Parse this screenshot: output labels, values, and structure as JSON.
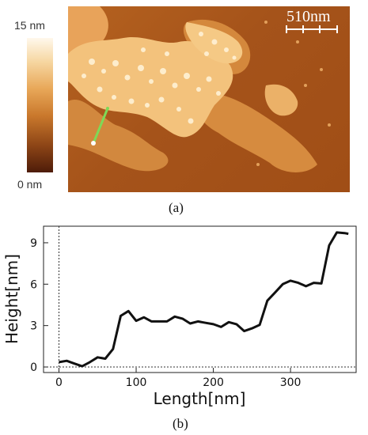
{
  "panel_a": {
    "label": "(a)",
    "colorbar": {
      "max_label": "15 nm",
      "min_label": "0 nm"
    },
    "scale_bar_label": "510nm"
  },
  "panel_b": {
    "label": "(b)"
  },
  "colors": {
    "profile_line": "#111111",
    "marker_line": "#7ed957",
    "marker_endpoint": "#ffffff"
  },
  "chart_data": {
    "type": "line",
    "title": "",
    "xlabel": "Length[nm]",
    "ylabel": "Height[nm]",
    "xlim": [
      -20,
      385
    ],
    "ylim": [
      -0.4,
      10.2
    ],
    "xticks": [
      0,
      100,
      200,
      300
    ],
    "yticks": [
      0,
      3,
      6,
      9
    ],
    "grid": false,
    "reference_lines": {
      "x_zero_dotted": true,
      "y_zero_dotted": true
    },
    "series": [
      {
        "x": [
          0,
          10,
          20,
          30,
          40,
          50,
          60,
          70,
          80,
          90,
          100,
          110,
          120,
          130,
          140,
          150,
          160,
          170,
          180,
          190,
          200,
          210,
          220,
          230,
          240,
          250,
          260,
          270,
          280,
          290,
          300,
          310,
          320,
          330,
          340,
          350,
          360,
          370,
          375
        ],
        "y": [
          0.35,
          0.45,
          0.25,
          0.05,
          0.35,
          0.7,
          0.6,
          1.3,
          3.7,
          4.05,
          3.35,
          3.6,
          3.3,
          3.3,
          3.3,
          3.65,
          3.5,
          3.15,
          3.3,
          3.2,
          3.1,
          2.9,
          3.25,
          3.1,
          2.6,
          2.8,
          3.05,
          4.8,
          5.4,
          6.0,
          6.25,
          6.1,
          5.85,
          6.1,
          6.05,
          8.8,
          9.75,
          9.7,
          9.65
        ]
      }
    ]
  }
}
